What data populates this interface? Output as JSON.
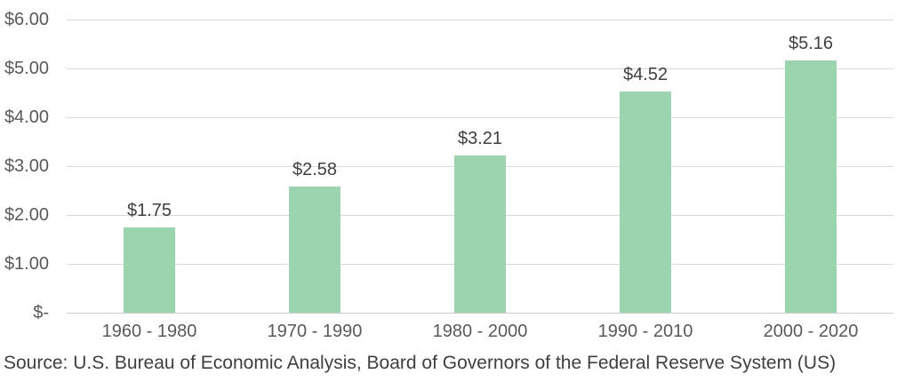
{
  "chart_data": {
    "type": "bar",
    "title": "",
    "xlabel": "",
    "ylabel": "",
    "categories": [
      "1960 - 1980",
      "1970 - 1990",
      "1980 - 2000",
      "1990 - 2010",
      "2000 - 2020"
    ],
    "values": [
      1.75,
      2.58,
      3.21,
      4.52,
      5.16
    ],
    "value_labels": [
      "$1.75",
      "$2.58",
      "$3.21",
      "$4.52",
      "$5.16"
    ],
    "ylim": [
      0,
      6
    ],
    "ytick_values": [
      6,
      5,
      4,
      3,
      2,
      1,
      0
    ],
    "ytick_labels": [
      "$6.00",
      "$5.00",
      "$4.00",
      "$3.00",
      "$2.00",
      "$1.00",
      "$-"
    ],
    "grid": true,
    "legend": "none",
    "colors": {
      "bar_fill": "#9bd4af",
      "gridline": "#d9d9d9",
      "axis_text": "#595959",
      "data_label_text": "#404040",
      "source_text": "#3f3f3f",
      "background": "#ffffff"
    },
    "source_note": "Source: U.S. Bureau of Economic Analysis, Board of Governors of the Federal Reserve System (US)"
  }
}
